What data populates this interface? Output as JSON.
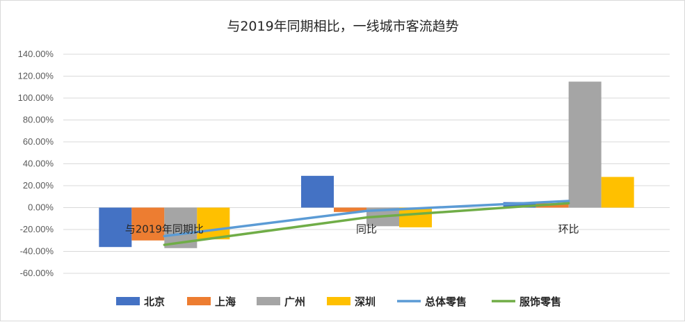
{
  "chart_data": {
    "type": "bar",
    "title": "与2019年同期相比，一线城市客流趋势",
    "categories": [
      "与2019年同期比",
      "同比",
      "环比"
    ],
    "ylim": [
      -0.6,
      1.4
    ],
    "ytick_step": 0.2,
    "y_format": "percent_2dp",
    "grid": true,
    "legend_position": "bottom",
    "series": [
      {
        "name": "北京",
        "kind": "bar",
        "color": "#4472C4",
        "values": [
          -0.36,
          0.29,
          0.05
        ]
      },
      {
        "name": "上海",
        "kind": "bar",
        "color": "#ED7D31",
        "values": [
          -0.3,
          -0.04,
          0.04
        ]
      },
      {
        "name": "广州",
        "kind": "bar",
        "color": "#A5A5A5",
        "values": [
          -0.37,
          -0.17,
          1.15
        ]
      },
      {
        "name": "深圳",
        "kind": "bar",
        "color": "#FFC000",
        "values": [
          -0.29,
          -0.18,
          0.28
        ]
      },
      {
        "name": "总体零售",
        "kind": "line",
        "color": "#5B9BD5",
        "values": [
          -0.26,
          -0.03,
          0.06
        ]
      },
      {
        "name": "服饰零售",
        "kind": "line",
        "color": "#70AD47",
        "values": [
          -0.34,
          -0.09,
          0.04
        ]
      }
    ]
  }
}
